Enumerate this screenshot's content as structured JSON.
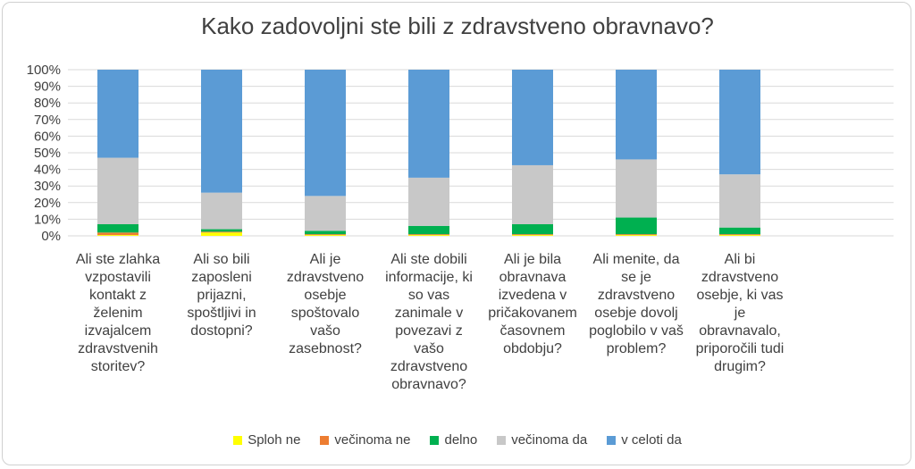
{
  "chart_data": {
    "type": "bar",
    "stacked": true,
    "percent": true,
    "title": "Kako zadovoljni ste bili z zdravstveno obravnavo?",
    "ylim": [
      0,
      100
    ],
    "yticks": [
      "0%",
      "10%",
      "20%",
      "30%",
      "40%",
      "50%",
      "60%",
      "70%",
      "80%",
      "90%",
      "100%"
    ],
    "grid": true,
    "legend_position": "bottom",
    "categories": [
      [
        "Ali ste zlahka",
        "vzpostavili",
        "kontakt z",
        "želenim",
        "izvajalcem",
        "zdravstvenih",
        "storitev?"
      ],
      [
        "Ali so bili",
        "zaposleni",
        "prijazni,",
        "spoštljivi in",
        "dostopni?"
      ],
      [
        "Ali je",
        "zdravstveno",
        "osebje",
        "spoštovalo",
        "vašo",
        "zasebnost?"
      ],
      [
        "Ali ste dobili",
        "informacije, ki",
        "so vas",
        "zanimale v",
        "povezavi z",
        "vašo",
        "zdravstveno",
        "obravnavo?"
      ],
      [
        "Ali je bila",
        "obravnava",
        "izvedena v",
        "pričakovanem",
        "časovnem",
        "obdobju?"
      ],
      [
        "Ali menite, da",
        "se je",
        "zdravstveno",
        "osebje dovolj",
        "poglobilo v vaš",
        "problem?"
      ],
      [
        "Ali bi",
        "zdravstveno",
        "osebje, ki vas",
        "je",
        "obravnavalo,",
        "priporočili tudi",
        "drugim?"
      ]
    ],
    "series": [
      {
        "name": "Sploh ne",
        "color": "#ffff00",
        "values": [
          0.5,
          2.0,
          0.5,
          0.5,
          0.5,
          0.5,
          0.5
        ]
      },
      {
        "name": "večinoma ne",
        "color": "#ed7d31",
        "values": [
          1.5,
          0.5,
          0.5,
          0.5,
          0.5,
          0.5,
          0.5
        ]
      },
      {
        "name": "delno",
        "color": "#00b050",
        "values": [
          5.0,
          1.5,
          2.0,
          5.0,
          6.0,
          10.0,
          4.0
        ]
      },
      {
        "name": "večinoma da",
        "color": "#c8c8c8",
        "values": [
          40.0,
          22.0,
          21.0,
          29.0,
          35.5,
          35.0,
          32.0
        ]
      },
      {
        "name": "v celoti da",
        "color": "#5b9bd5",
        "values": [
          53.0,
          74.0,
          76.0,
          65.0,
          57.5,
          54.0,
          63.0
        ]
      }
    ]
  }
}
